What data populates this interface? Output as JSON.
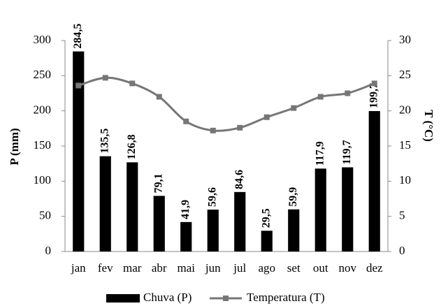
{
  "chart_data": {
    "type": "bar",
    "categories": [
      "jan",
      "fev",
      "mar",
      "abr",
      "mai",
      "jun",
      "jul",
      "ago",
      "set",
      "out",
      "nov",
      "dez"
    ],
    "series": [
      {
        "name": "Chuva (P)",
        "color": "#000000",
        "values": [
          284.5,
          135.5,
          126.8,
          79.1,
          41.9,
          59.6,
          84.6,
          29.5,
          59.9,
          117.9,
          119.7,
          199.7
        ],
        "value_labels": [
          "284,5",
          "135,5",
          "126,8",
          "79,1",
          "41,9",
          "59,6",
          "84,6",
          "29,5",
          "59,9",
          "117,9",
          "119,7",
          "199,7"
        ]
      },
      {
        "name": "Temperatura (T)",
        "color": "#767676",
        "type": "line",
        "axis": "y2",
        "values": [
          23.6,
          24.7,
          23.9,
          22.0,
          18.5,
          17.2,
          17.6,
          19.1,
          20.4,
          22.0,
          22.5,
          23.9
        ]
      }
    ],
    "ylabel": "P (mm)",
    "y2label": "T (°C)",
    "ylim": [
      0,
      300
    ],
    "yticks": [
      0,
      50,
      100,
      150,
      200,
      250,
      300
    ],
    "y2lim": [
      0,
      30
    ],
    "y2ticks": [
      0,
      5,
      10,
      15,
      20,
      25,
      30
    ],
    "grid": false,
    "legend": "bottom"
  }
}
